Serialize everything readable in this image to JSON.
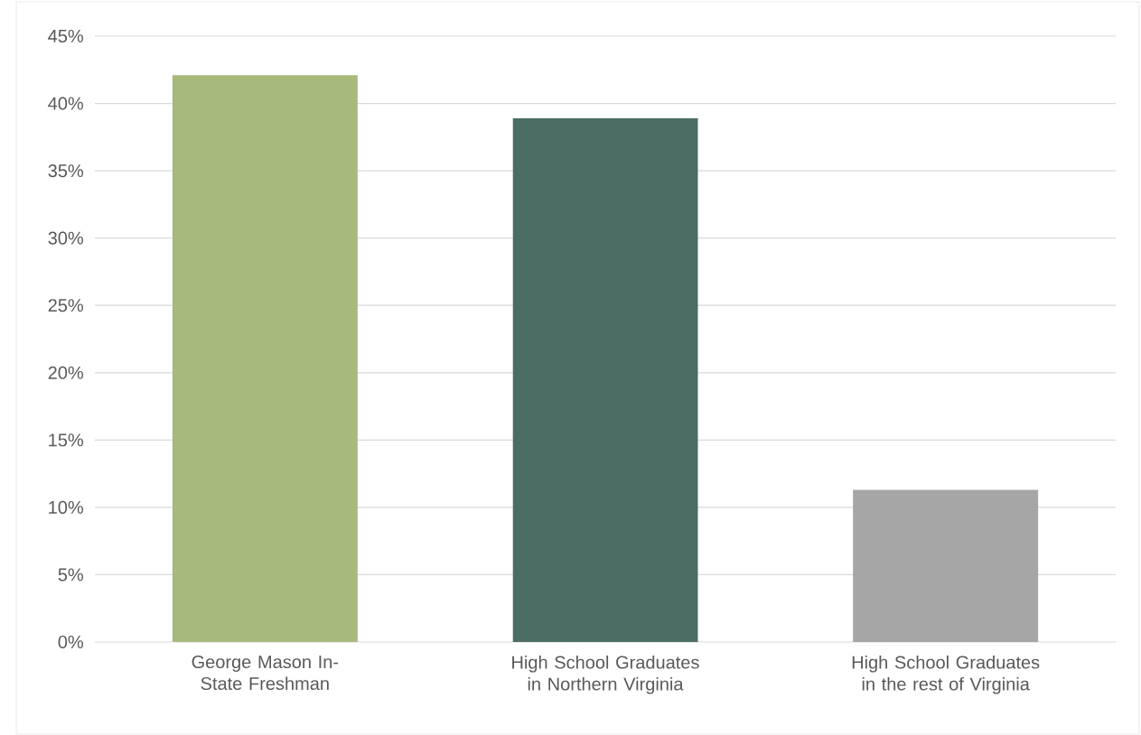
{
  "chart_data": {
    "type": "bar",
    "categories": [
      "George Mason In-State Freshman",
      "High School Graduates in Northern Virginia",
      "High School Graduates in the rest of Virginia"
    ],
    "values": [
      42.1,
      38.9,
      11.3
    ],
    "colors": [
      "#a7b97b",
      "#4b6d64",
      "#a6a6a6"
    ],
    "ylim": [
      0,
      45
    ],
    "yticks": [
      {
        "value": 0,
        "label": "0%"
      },
      {
        "value": 5,
        "label": "5%"
      },
      {
        "value": 10,
        "label": "10%"
      },
      {
        "value": 15,
        "label": "15%"
      },
      {
        "value": 20,
        "label": "20%"
      },
      {
        "value": 25,
        "label": "25%"
      },
      {
        "value": 30,
        "label": "30%"
      },
      {
        "value": 35,
        "label": "35%"
      },
      {
        "value": 40,
        "label": "40%"
      },
      {
        "value": 45,
        "label": "45%"
      }
    ],
    "grid": "y"
  }
}
